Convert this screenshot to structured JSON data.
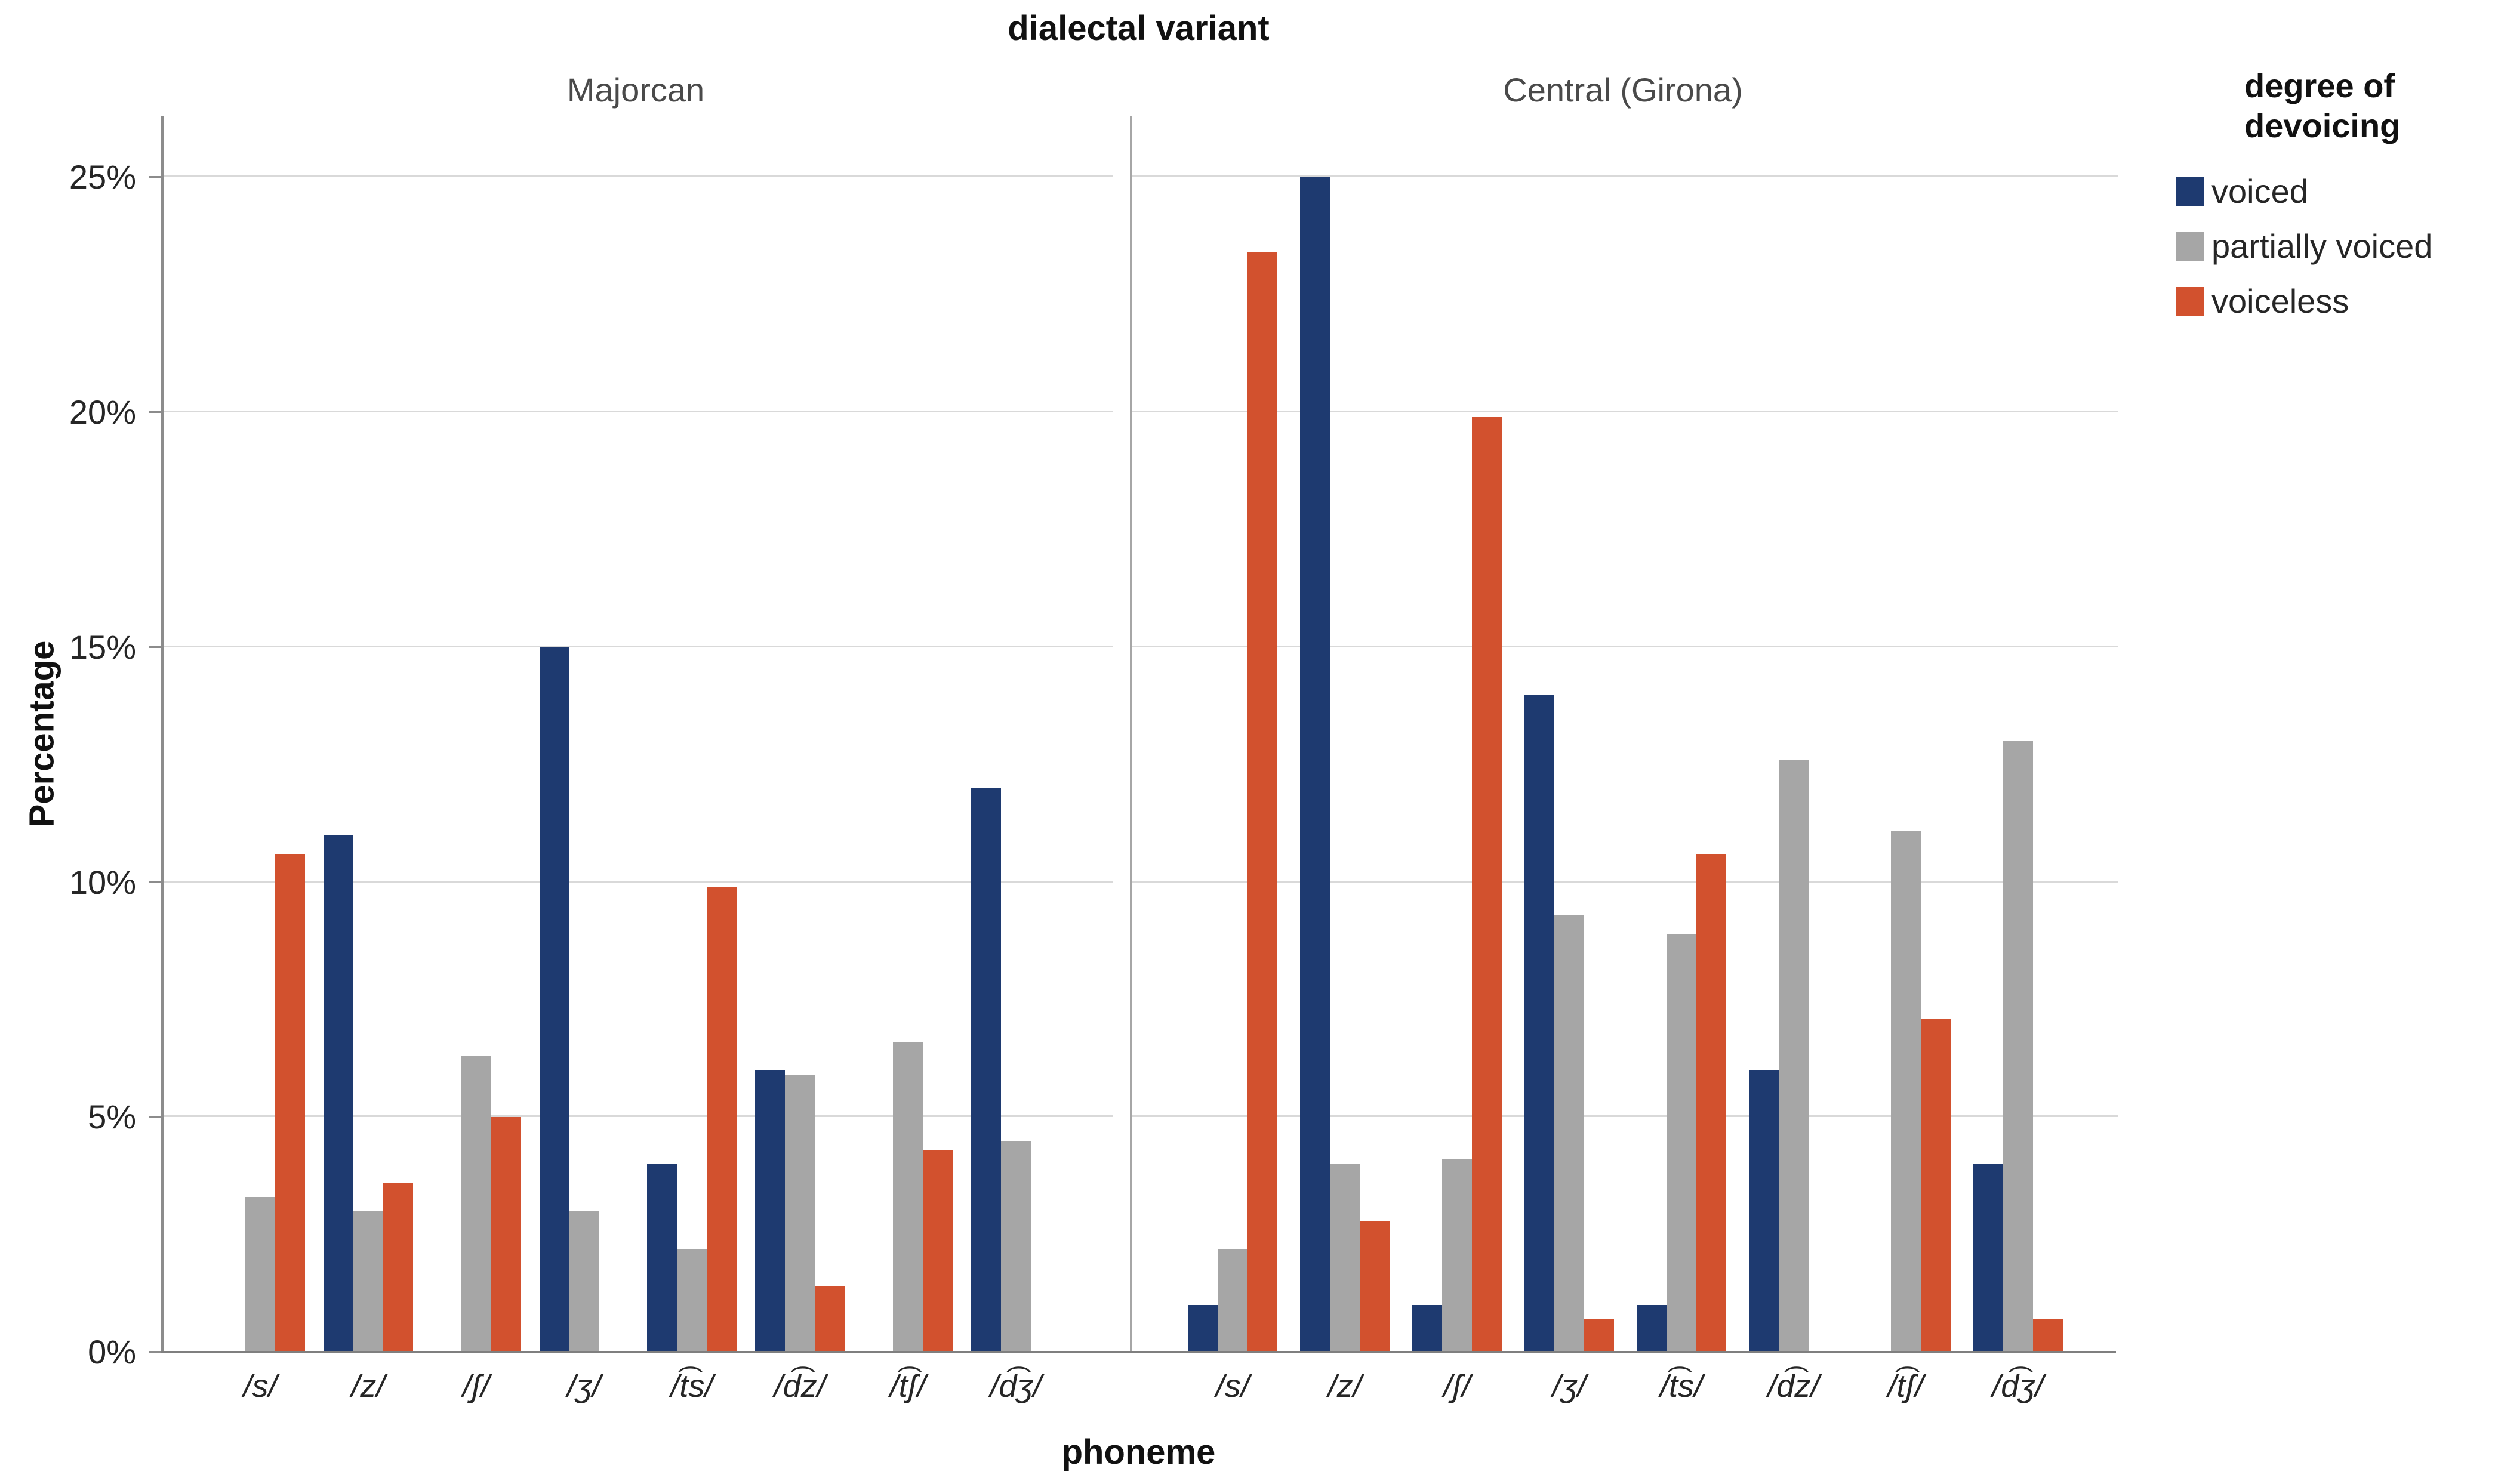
{
  "title": "dialectal variant",
  "axes": {
    "y_title": "Percentage",
    "x_title": "phoneme",
    "y_ticks": [
      "0%",
      "5%",
      "10%",
      "15%",
      "20%",
      "25%"
    ]
  },
  "legend": {
    "title_line1": "degree of",
    "title_line2": "devoicing",
    "items": [
      {
        "label": "voiced",
        "color": "#1e3a70"
      },
      {
        "label": "partially voiced",
        "color": "#a6a6a6"
      },
      {
        "label": "voiceless",
        "color": "#d2512e"
      }
    ]
  },
  "chart_data": {
    "type": "bar",
    "title": "dialectal variant",
    "xlabel": "phoneme",
    "ylabel": "Percentage",
    "ylim": [
      0,
      26.3
    ],
    "grid": "horizontal",
    "gridlines": [
      5,
      10,
      15,
      20,
      25
    ],
    "legend_position": "right",
    "categories": [
      "/s/",
      "/z/",
      "/ʃ/",
      "/ʒ/",
      "/t͡s/",
      "/d͡z/",
      "/t͡ʃ/",
      "/d͡ʒ/"
    ],
    "series": [
      {
        "name": "voiced",
        "color": "#1e3a70"
      },
      {
        "name": "partially voiced",
        "color": "#a6a6a6"
      },
      {
        "name": "voiceless",
        "color": "#d2512e"
      }
    ],
    "facets": [
      {
        "name": "Majorcan",
        "values": [
          [
            0,
            11,
            0,
            15,
            4,
            6,
            0,
            12
          ],
          [
            3.3,
            3.0,
            6.3,
            3.0,
            2.2,
            5.9,
            6.6,
            4.5
          ],
          [
            10.6,
            3.6,
            5.0,
            0,
            9.9,
            1.4,
            4.3,
            0
          ]
        ]
      },
      {
        "name": "Central (Girona)",
        "values": [
          [
            1,
            25,
            1,
            14,
            1,
            6,
            0,
            4
          ],
          [
            2.2,
            4.0,
            4.1,
            9.3,
            8.9,
            12.6,
            11.1,
            13.0
          ],
          [
            23.4,
            2.8,
            19.9,
            0.7,
            10.6,
            0,
            7.1,
            0.7
          ]
        ]
      }
    ]
  }
}
